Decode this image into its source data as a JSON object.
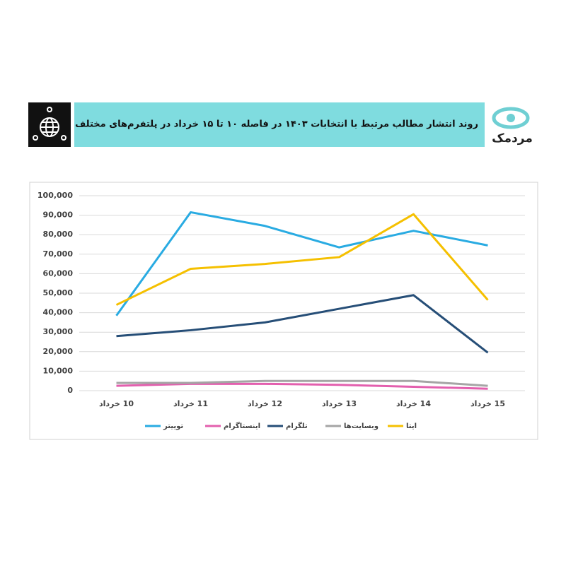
{
  "brand": "مردمک",
  "chart_data": {
    "type": "line",
    "title": "روند انتشار مطالب مرتبط با انتخابات ۱۴۰۳ در فاصله ۱۰ تا ۱۵ خرداد در پلتفرم‌های مختلف",
    "categories": [
      "10 خرداد",
      "11 خرداد",
      "12 خرداد",
      "13 خرداد",
      "14 خرداد",
      "15 خرداد"
    ],
    "series": [
      {
        "name": "توییتر",
        "color": "#29abe2",
        "values": [
          38500,
          91500,
          84500,
          73500,
          82000,
          74500
        ]
      },
      {
        "name": "اینستاگرام",
        "color": "#e35fae",
        "values": [
          2500,
          3500,
          3500,
          3000,
          2000,
          1000
        ]
      },
      {
        "name": "تلگرام",
        "color": "#264e77",
        "values": [
          28000,
          31000,
          35000,
          42000,
          49000,
          19500
        ]
      },
      {
        "name": "وبسایت‌ها",
        "color": "#a5a5a5",
        "values": [
          4000,
          4000,
          5000,
          5000,
          5000,
          2500
        ]
      },
      {
        "name": "ایتا",
        "color": "#f5c000",
        "values": [
          44000,
          62500,
          65000,
          68500,
          90500,
          46500
        ]
      }
    ],
    "ylim": [
      0,
      100000
    ],
    "yticks": [
      0,
      {
        "value": 10000,
        "label": "10,000"
      },
      {
        "value": 20000,
        "label": "20,000"
      },
      {
        "value": 30000,
        "label": "30,000"
      },
      {
        "value": 40000,
        "label": "40,000"
      },
      {
        "value": 50000,
        "label": "50,000"
      },
      {
        "value": 60000,
        "label": "60,000"
      },
      {
        "value": 70000,
        "label": "70,000"
      },
      {
        "value": 80000,
        "label": "80,000"
      },
      {
        "value": 90000,
        "label": "90,000"
      },
      {
        "value": 100000,
        "label": "100,000"
      }
    ],
    "grid": true
  }
}
